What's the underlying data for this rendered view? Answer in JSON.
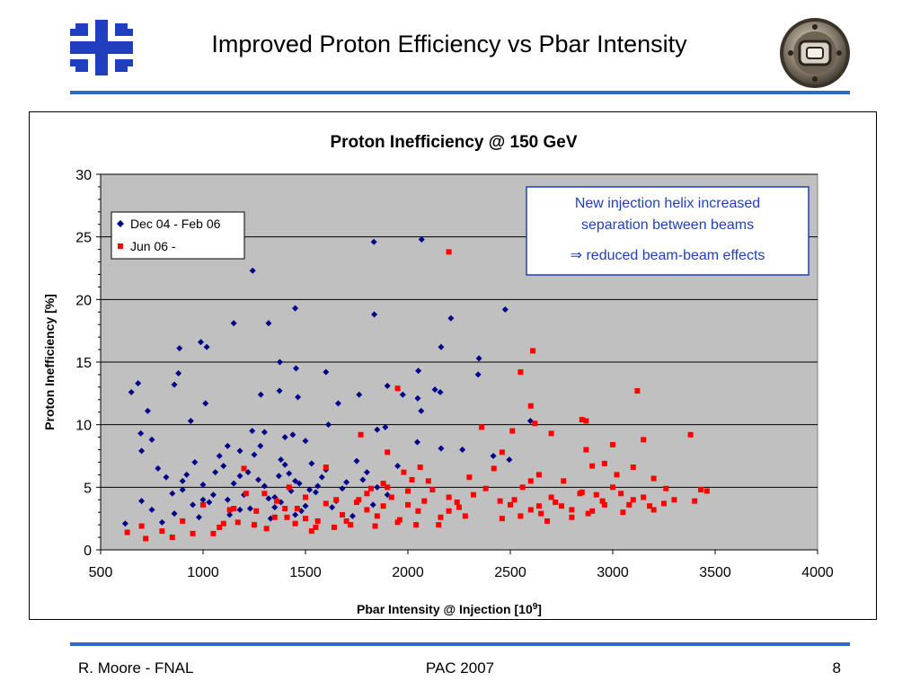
{
  "slide": {
    "title": "Improved Proton Efficiency vs Pbar Intensity",
    "logo": "fermilab-logo",
    "seal": "beam-pipe-photo",
    "rule_color": "#3366cc"
  },
  "footer": {
    "author": "R. Moore - FNAL",
    "event": "PAC 2007",
    "page": "8"
  },
  "chart_data": {
    "type": "scatter",
    "title": "Proton Inefficiency @ 150 GeV",
    "xlabel": "Pbar Intensity @ Injection  [10",
    "xlabel_sup": "9",
    "xlabel_end": "]",
    "ylabel": "Proton Inefficiency  [%]",
    "xlim": [
      500,
      4000
    ],
    "ylim": [
      0,
      30
    ],
    "xticks": [
      500,
      1000,
      1500,
      2000,
      2500,
      3000,
      3500,
      4000
    ],
    "yticks": [
      0,
      5,
      10,
      15,
      20,
      25,
      30
    ],
    "grid": true,
    "plot_background": "#c0c0c0",
    "legend_position": "top-left",
    "annotation": {
      "line1": "New injection helix increased",
      "line2": "separation between beams",
      "line3": "⇒ reduced beam-beam effects",
      "color": "#1f3fbf",
      "position": "top-right"
    },
    "series": [
      {
        "name": "Dec 04 - Feb 06",
        "marker": "diamond",
        "color": "#00008b",
        "points": [
          [
            1242,
            22.3
          ],
          [
            1834,
            24.6
          ],
          [
            2067,
            24.8
          ],
          [
            1450,
            19.3
          ],
          [
            1150,
            18.1
          ],
          [
            1320,
            18.1
          ],
          [
            1836,
            18.8
          ],
          [
            2210,
            18.5
          ],
          [
            2475,
            19.2
          ],
          [
            989,
            16.6
          ],
          [
            1018,
            16.2
          ],
          [
            885,
            16.1
          ],
          [
            2162,
            16.2
          ],
          [
            1375,
            15.0
          ],
          [
            1454,
            14.5
          ],
          [
            1600,
            14.2
          ],
          [
            2347,
            15.3
          ],
          [
            2343,
            14.0
          ],
          [
            2051,
            14.3
          ],
          [
            860,
            13.2
          ],
          [
            880,
            14.1
          ],
          [
            2132,
            12.8
          ],
          [
            2158,
            12.6
          ],
          [
            1900,
            13.1
          ],
          [
            1975,
            12.4
          ],
          [
            2048,
            12.1
          ],
          [
            683,
            13.3
          ],
          [
            650,
            12.6
          ],
          [
            730,
            11.1
          ],
          [
            1012,
            11.7
          ],
          [
            1373,
            12.7
          ],
          [
            1282,
            12.4
          ],
          [
            1463,
            12.2
          ],
          [
            1762,
            12.4
          ],
          [
            1660,
            11.7
          ],
          [
            2065,
            11.1
          ],
          [
            940,
            10.3
          ],
          [
            1612,
            10.0
          ],
          [
            2598,
            10.3
          ],
          [
            1240,
            9.5
          ],
          [
            1438,
            9.2
          ],
          [
            1850,
            9.6
          ],
          [
            1890,
            9.8
          ],
          [
            2046,
            8.6
          ],
          [
            2162,
            8.1
          ],
          [
            2266,
            8.0
          ],
          [
            2417,
            7.5
          ],
          [
            2495,
            7.2
          ],
          [
            696,
            9.3
          ],
          [
            750,
            8.8
          ],
          [
            700,
            7.9
          ],
          [
            780,
            6.5
          ],
          [
            620,
            2.1
          ],
          [
            700,
            3.9
          ],
          [
            750,
            3.2
          ],
          [
            800,
            2.2
          ],
          [
            850,
            4.5
          ],
          [
            900,
            4.8
          ],
          [
            950,
            3.6
          ],
          [
            1000,
            5.2
          ],
          [
            1050,
            4.4
          ],
          [
            1100,
            6.7
          ],
          [
            1150,
            5.3
          ],
          [
            1200,
            4.4
          ],
          [
            1250,
            7.6
          ],
          [
            1300,
            5.1
          ],
          [
            1350,
            4.2
          ],
          [
            1400,
            6.8
          ],
          [
            1450,
            5.5
          ],
          [
            1500,
            8.7
          ],
          [
            1550,
            4.6
          ],
          [
            1600,
            6.4
          ],
          [
            1650,
            3.9
          ],
          [
            1700,
            5.4
          ],
          [
            1750,
            7.1
          ],
          [
            1800,
            6.2
          ],
          [
            1850,
            5.0
          ],
          [
            1900,
            4.4
          ],
          [
            1950,
            6.7
          ],
          [
            860,
            2.9
          ],
          [
            920,
            6.0
          ],
          [
            980,
            2.6
          ],
          [
            1030,
            3.8
          ],
          [
            1080,
            7.5
          ],
          [
            1130,
            2.8
          ],
          [
            1180,
            5.9
          ],
          [
            1230,
            3.3
          ],
          [
            1280,
            8.3
          ],
          [
            1330,
            2.5
          ],
          [
            1380,
            7.2
          ],
          [
            1430,
            4.7
          ],
          [
            1480,
            3.1
          ],
          [
            1530,
            6.9
          ],
          [
            1580,
            5.8
          ],
          [
            1630,
            3.4
          ],
          [
            1680,
            4.9
          ],
          [
            1730,
            2.7
          ],
          [
            1780,
            5.6
          ],
          [
            1830,
            3.6
          ],
          [
            1120,
            4.0
          ],
          [
            1180,
            3.2
          ],
          [
            1220,
            6.2
          ],
          [
            1270,
            5.6
          ],
          [
            1320,
            4.1
          ],
          [
            1370,
            5.9
          ],
          [
            1420,
            6.1
          ],
          [
            1470,
            5.3
          ],
          [
            1520,
            4.8
          ],
          [
            1560,
            5.1
          ],
          [
            1380,
            3.8
          ],
          [
            1400,
            9.0
          ],
          [
            1300,
            9.4
          ],
          [
            1180,
            7.9
          ],
          [
            1120,
            8.3
          ],
          [
            960,
            7.0
          ],
          [
            900,
            5.5
          ],
          [
            820,
            5.8
          ],
          [
            1060,
            6.2
          ],
          [
            1000,
            4.0
          ],
          [
            1250,
            2.0
          ],
          [
            1350,
            3.4
          ],
          [
            1450,
            2.8
          ],
          [
            1500,
            3.5
          ]
        ]
      },
      {
        "name": "Jun 06 -",
        "marker": "square",
        "color": "#ff0000",
        "points": [
          [
            2200,
            23.8
          ],
          [
            2610,
            15.9
          ],
          [
            2550,
            14.2
          ],
          [
            1950,
            12.9
          ],
          [
            3120,
            12.7
          ],
          [
            2600,
            11.5
          ],
          [
            2620,
            10.1
          ],
          [
            2850,
            10.4
          ],
          [
            2870,
            10.3
          ],
          [
            2360,
            9.8
          ],
          [
            2510,
            9.5
          ],
          [
            2700,
            9.3
          ],
          [
            3380,
            9.2
          ],
          [
            1770,
            9.2
          ],
          [
            2870,
            8.0
          ],
          [
            3000,
            8.4
          ],
          [
            3150,
            8.8
          ],
          [
            2420,
            6.5
          ],
          [
            2460,
            7.8
          ],
          [
            2640,
            6.0
          ],
          [
            2900,
            6.7
          ],
          [
            2960,
            6.9
          ],
          [
            3020,
            6.0
          ],
          [
            3100,
            6.6
          ],
          [
            3200,
            5.7
          ],
          [
            3260,
            4.9
          ],
          [
            3400,
            3.9
          ],
          [
            3430,
            4.8
          ],
          [
            3460,
            4.7
          ],
          [
            2320,
            4.4
          ],
          [
            2380,
            4.9
          ],
          [
            2450,
            3.9
          ],
          [
            2500,
            3.6
          ],
          [
            2550,
            2.7
          ],
          [
            2600,
            3.2
          ],
          [
            2650,
            2.9
          ],
          [
            2700,
            4.2
          ],
          [
            2750,
            3.5
          ],
          [
            2800,
            2.6
          ],
          [
            2850,
            4.6
          ],
          [
            2900,
            3.1
          ],
          [
            2950,
            3.9
          ],
          [
            3000,
            5.0
          ],
          [
            3050,
            3.0
          ],
          [
            3100,
            4.0
          ],
          [
            3150,
            4.2
          ],
          [
            3200,
            3.2
          ],
          [
            3250,
            3.7
          ],
          [
            3300,
            4.0
          ],
          [
            630,
            1.4
          ],
          [
            700,
            1.9
          ],
          [
            720,
            0.9
          ],
          [
            800,
            1.5
          ],
          [
            850,
            1.0
          ],
          [
            900,
            2.3
          ],
          [
            950,
            1.3
          ],
          [
            1000,
            3.6
          ],
          [
            1050,
            1.3
          ],
          [
            1100,
            2.1
          ],
          [
            1150,
            3.3
          ],
          [
            1200,
            6.5
          ],
          [
            1250,
            2.0
          ],
          [
            1300,
            4.5
          ],
          [
            1350,
            2.6
          ],
          [
            1400,
            3.3
          ],
          [
            1450,
            2.1
          ],
          [
            1500,
            4.2
          ],
          [
            1550,
            1.8
          ],
          [
            1600,
            6.6
          ],
          [
            1650,
            4.0
          ],
          [
            1700,
            2.3
          ],
          [
            1750,
            3.8
          ],
          [
            1800,
            4.5
          ],
          [
            1850,
            2.7
          ],
          [
            1900,
            5.0
          ],
          [
            1950,
            2.2
          ],
          [
            2000,
            4.7
          ],
          [
            2050,
            3.1
          ],
          [
            2100,
            5.5
          ],
          [
            2150,
            2.0
          ],
          [
            2200,
            4.2
          ],
          [
            2250,
            3.4
          ],
          [
            2300,
            5.8
          ],
          [
            1420,
            5.0
          ],
          [
            1500,
            2.5
          ],
          [
            1530,
            1.5
          ],
          [
            1560,
            2.3
          ],
          [
            1600,
            3.7
          ],
          [
            1640,
            1.8
          ],
          [
            1680,
            2.8
          ],
          [
            1720,
            2.0
          ],
          [
            1760,
            4.0
          ],
          [
            1800,
            3.2
          ],
          [
            1840,
            1.9
          ],
          [
            1880,
            3.5
          ],
          [
            1920,
            4.2
          ],
          [
            1960,
            2.4
          ],
          [
            2000,
            3.6
          ],
          [
            2040,
            2.0
          ],
          [
            2080,
            3.9
          ],
          [
            2120,
            4.8
          ],
          [
            2160,
            2.6
          ],
          [
            2200,
            3.1
          ],
          [
            2240,
            3.8
          ],
          [
            2280,
            2.7
          ],
          [
            1080,
            1.8
          ],
          [
            1130,
            3.2
          ],
          [
            1170,
            2.2
          ],
          [
            1210,
            4.5
          ],
          [
            1260,
            3.1
          ],
          [
            1310,
            1.7
          ],
          [
            1360,
            3.9
          ],
          [
            1410,
            2.6
          ],
          [
            1460,
            3.3
          ],
          [
            2600,
            5.5
          ],
          [
            2640,
            3.5
          ],
          [
            2680,
            2.3
          ],
          [
            2720,
            3.8
          ],
          [
            2760,
            5.5
          ],
          [
            2800,
            3.2
          ],
          [
            2840,
            4.5
          ],
          [
            2880,
            2.9
          ],
          [
            2920,
            4.4
          ],
          [
            2960,
            3.6
          ],
          [
            3040,
            4.5
          ],
          [
            3080,
            3.6
          ],
          [
            3180,
            3.5
          ],
          [
            2460,
            2.5
          ],
          [
            2520,
            4.0
          ],
          [
            2560,
            5.0
          ],
          [
            1900,
            7.8
          ],
          [
            2060,
            6.6
          ],
          [
            2020,
            5.6
          ],
          [
            1980,
            6.2
          ],
          [
            1880,
            5.3
          ],
          [
            1820,
            4.9
          ]
        ]
      }
    ]
  }
}
